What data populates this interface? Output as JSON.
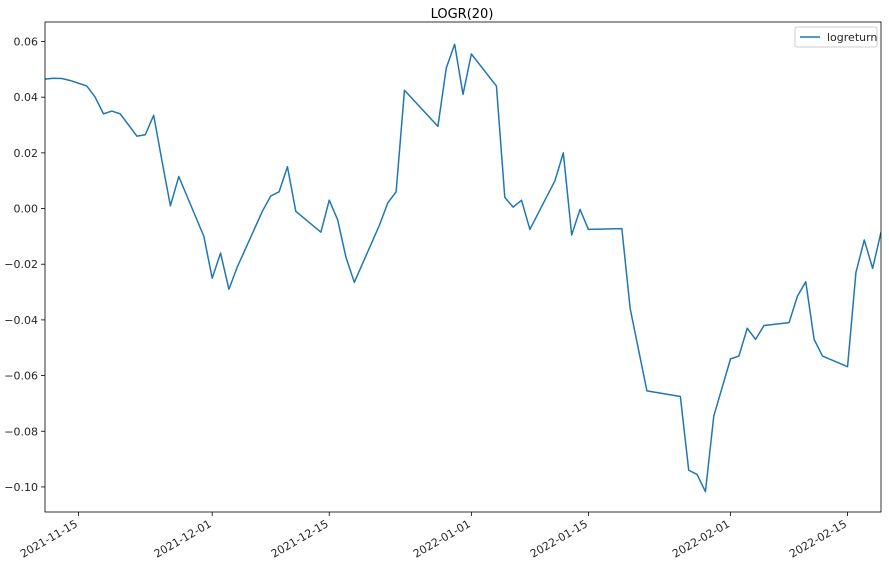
{
  "chart_data": {
    "type": "line",
    "title": "LOGR(20)",
    "xlabel": "",
    "ylabel": "",
    "grid": false,
    "legend_position": "top-right",
    "x_range": [
      "2021-11-11",
      "2022-02-19"
    ],
    "ylim": [
      -0.109,
      0.067
    ],
    "y_ticks": [
      0.06,
      0.04,
      0.02,
      0.0,
      -0.02,
      -0.04,
      -0.06,
      -0.08,
      -0.1
    ],
    "y_tick_labels": [
      "0.06",
      "0.04",
      "0.02",
      "0.00",
      "−0.02",
      "−0.04",
      "−0.06",
      "−0.08",
      "−0.10"
    ],
    "x_ticks": [
      "2021-11-15",
      "2021-12-01",
      "2021-12-15",
      "2022-01-01",
      "2022-01-15",
      "2022-02-01",
      "2022-02-15"
    ],
    "x_tick_labels": [
      "2021-11-15",
      "2021-12-01",
      "2021-12-15",
      "2022-01-01",
      "2022-01-15",
      "2022-02-01",
      "2022-02-15"
    ],
    "series": [
      {
        "name": "logreturn",
        "color": "#1f77b4",
        "x": [
          "2021-11-11",
          "2021-11-12",
          "2021-11-13",
          "2021-11-14",
          "2021-11-15",
          "2021-11-16",
          "2021-11-17",
          "2021-11-18",
          "2021-11-19",
          "2021-11-20",
          "2021-11-21",
          "2021-11-22",
          "2021-11-23",
          "2021-11-24",
          "2021-11-25",
          "2021-11-26",
          "2021-11-27",
          "2021-11-30",
          "2021-12-01",
          "2021-12-02",
          "2021-12-03",
          "2021-12-04",
          "2021-12-07",
          "2021-12-08",
          "2021-12-09",
          "2021-12-10",
          "2021-12-11",
          "2021-12-14",
          "2021-12-15",
          "2021-12-16",
          "2021-12-17",
          "2021-12-18",
          "2021-12-21",
          "2021-12-22",
          "2021-12-23",
          "2021-12-24",
          "2021-12-28",
          "2021-12-29",
          "2021-12-30",
          "2021-12-31",
          "2022-01-01",
          "2022-01-04",
          "2022-01-05",
          "2022-01-06",
          "2022-01-07",
          "2022-01-08",
          "2022-01-11",
          "2022-01-12",
          "2022-01-13",
          "2022-01-14",
          "2022-01-15",
          "2022-01-19",
          "2022-01-20",
          "2022-01-22",
          "2022-01-26",
          "2022-01-27",
          "2022-01-28",
          "2022-01-29",
          "2022-01-30",
          "2022-02-01",
          "2022-02-02",
          "2022-02-03",
          "2022-02-04",
          "2022-02-05",
          "2022-02-08",
          "2022-02-09",
          "2022-02-10",
          "2022-02-11",
          "2022-02-12",
          "2022-02-15",
          "2022-02-16",
          "2022-02-17",
          "2022-02-18",
          "2022-02-19"
        ],
        "y": [
          0.0465,
          0.0468,
          0.0467,
          0.046,
          0.045,
          0.044,
          0.04,
          0.034,
          0.035,
          0.034,
          0.03,
          0.026,
          0.0265,
          0.0335,
          0.017,
          0.001,
          0.0115,
          -0.01,
          -0.025,
          -0.016,
          -0.029,
          -0.021,
          -0.001,
          0.0045,
          0.006,
          0.015,
          -0.001,
          -0.0085,
          0.003,
          -0.004,
          -0.0175,
          -0.0265,
          -0.006,
          0.002,
          0.006,
          0.0425,
          0.0295,
          0.0505,
          0.059,
          0.041,
          0.0555,
          0.044,
          0.004,
          0.0005,
          0.003,
          -0.0075,
          0.01,
          0.02,
          -0.0095,
          -0.0003,
          -0.0075,
          -0.0072,
          -0.036,
          -0.0655,
          -0.0675,
          -0.094,
          -0.0955,
          -0.1017,
          -0.0745,
          -0.054,
          -0.053,
          -0.043,
          -0.047,
          -0.042,
          -0.041,
          -0.0315,
          -0.0263,
          -0.047,
          -0.053,
          -0.0568,
          -0.023,
          -0.0113,
          -0.0215,
          -0.0085
        ]
      }
    ]
  }
}
